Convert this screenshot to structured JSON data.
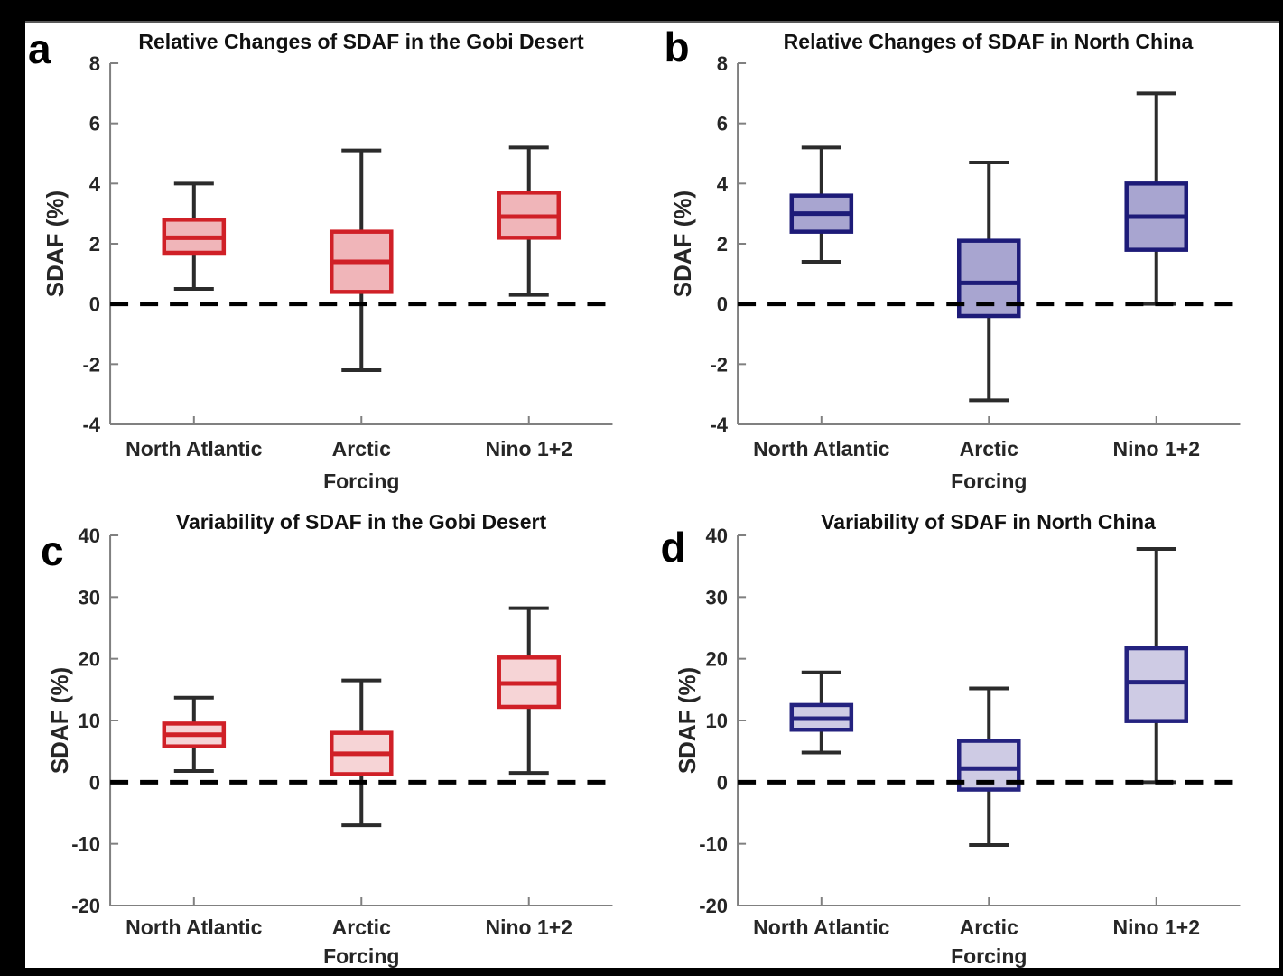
{
  "figure": {
    "background": "#000000",
    "panel_background": "#ffffff",
    "axis_color": "#808080",
    "text_color": "#262626",
    "zero_line_color": "#000000"
  },
  "chart_data": [
    {
      "type": "box",
      "letter": "a",
      "title": "Relative Changes of SDAF in the Gobi Desert",
      "xlabel": "Forcing",
      "ylabel": "SDAF (%)",
      "categories": [
        "North Atlantic",
        "Arctic",
        "Nino 1+2"
      ],
      "ylim": [
        -4,
        8
      ],
      "yticks": [
        -4,
        -2,
        0,
        2,
        4,
        6,
        8
      ],
      "grid": false,
      "legend": false,
      "zero_dashed_line": 0,
      "box_fill": "#f0b5b9",
      "box_stroke": "#d02027",
      "whisker_color": "#2b2b2b",
      "series": [
        {
          "category": "North Atlantic",
          "whisker_low": 0.5,
          "q1": 1.7,
          "median": 2.2,
          "q3": 2.8,
          "whisker_high": 4.0
        },
        {
          "category": "Arctic",
          "whisker_low": -2.2,
          "q1": 0.4,
          "median": 1.4,
          "q3": 2.4,
          "whisker_high": 5.1
        },
        {
          "category": "Nino 1+2",
          "whisker_low": 0.3,
          "q1": 2.2,
          "median": 2.9,
          "q3": 3.7,
          "whisker_high": 5.2
        }
      ]
    },
    {
      "type": "box",
      "letter": "b",
      "title": "Relative Changes of SDAF in North China",
      "xlabel": "Forcing",
      "ylabel": "SDAF (%)",
      "categories": [
        "North Atlantic",
        "Arctic",
        "Nino 1+2"
      ],
      "ylim": [
        -4,
        8
      ],
      "yticks": [
        -4,
        -2,
        0,
        2,
        4,
        6,
        8
      ],
      "grid": false,
      "legend": false,
      "zero_dashed_line": 0,
      "box_fill": "#a8a5d0",
      "box_stroke": "#1d1b78",
      "whisker_color": "#2b2b2b",
      "series": [
        {
          "category": "North Atlantic",
          "whisker_low": 1.4,
          "q1": 2.4,
          "median": 3.0,
          "q3": 3.6,
          "whisker_high": 5.2
        },
        {
          "category": "Arctic",
          "whisker_low": -3.2,
          "q1": -0.4,
          "median": 0.7,
          "q3": 2.1,
          "whisker_high": 4.7
        },
        {
          "category": "Nino 1+2",
          "whisker_low": 0.0,
          "q1": 1.8,
          "median": 2.9,
          "q3": 4.0,
          "whisker_high": 7.0
        }
      ]
    },
    {
      "type": "box",
      "letter": "c",
      "title": "Variability of SDAF in the Gobi Desert",
      "xlabel": "Forcing",
      "ylabel": "SDAF (%)",
      "categories": [
        "North Atlantic",
        "Arctic",
        "Nino 1+2"
      ],
      "ylim": [
        -20,
        40
      ],
      "yticks": [
        -20,
        -10,
        0,
        10,
        20,
        30,
        40
      ],
      "grid": false,
      "legend": false,
      "zero_dashed_line": 0,
      "box_fill": "#f6d4d6",
      "box_stroke": "#d02027",
      "whisker_color": "#2b2b2b",
      "series": [
        {
          "category": "North Atlantic",
          "whisker_low": 1.8,
          "q1": 5.8,
          "median": 7.7,
          "q3": 9.5,
          "whisker_high": 13.7
        },
        {
          "category": "Arctic",
          "whisker_low": -7.0,
          "q1": 1.3,
          "median": 4.6,
          "q3": 8.0,
          "whisker_high": 16.5
        },
        {
          "category": "Nino 1+2",
          "whisker_low": 1.5,
          "q1": 12.2,
          "median": 16.0,
          "q3": 20.2,
          "whisker_high": 28.2
        }
      ]
    },
    {
      "type": "box",
      "letter": "d",
      "title": "Variability of SDAF in North China",
      "xlabel": "Forcing",
      "ylabel": "SDAF (%)",
      "categories": [
        "North Atlantic",
        "Arctic",
        "Nino 1+2"
      ],
      "ylim": [
        -20,
        40
      ],
      "yticks": [
        -20,
        -10,
        0,
        10,
        20,
        30,
        40
      ],
      "grid": false,
      "legend": false,
      "zero_dashed_line": 0,
      "box_fill": "#cecbe4",
      "box_stroke": "#24227f",
      "whisker_color": "#2b2b2b",
      "series": [
        {
          "category": "North Atlantic",
          "whisker_low": 4.8,
          "q1": 8.5,
          "median": 10.3,
          "q3": 12.5,
          "whisker_high": 17.8
        },
        {
          "category": "Arctic",
          "whisker_low": -10.2,
          "q1": -1.2,
          "median": 2.2,
          "q3": 6.7,
          "whisker_high": 15.2
        },
        {
          "category": "Nino 1+2",
          "whisker_low": 0.0,
          "q1": 9.9,
          "median": 16.2,
          "q3": 21.7,
          "whisker_high": 37.8
        }
      ]
    }
  ]
}
